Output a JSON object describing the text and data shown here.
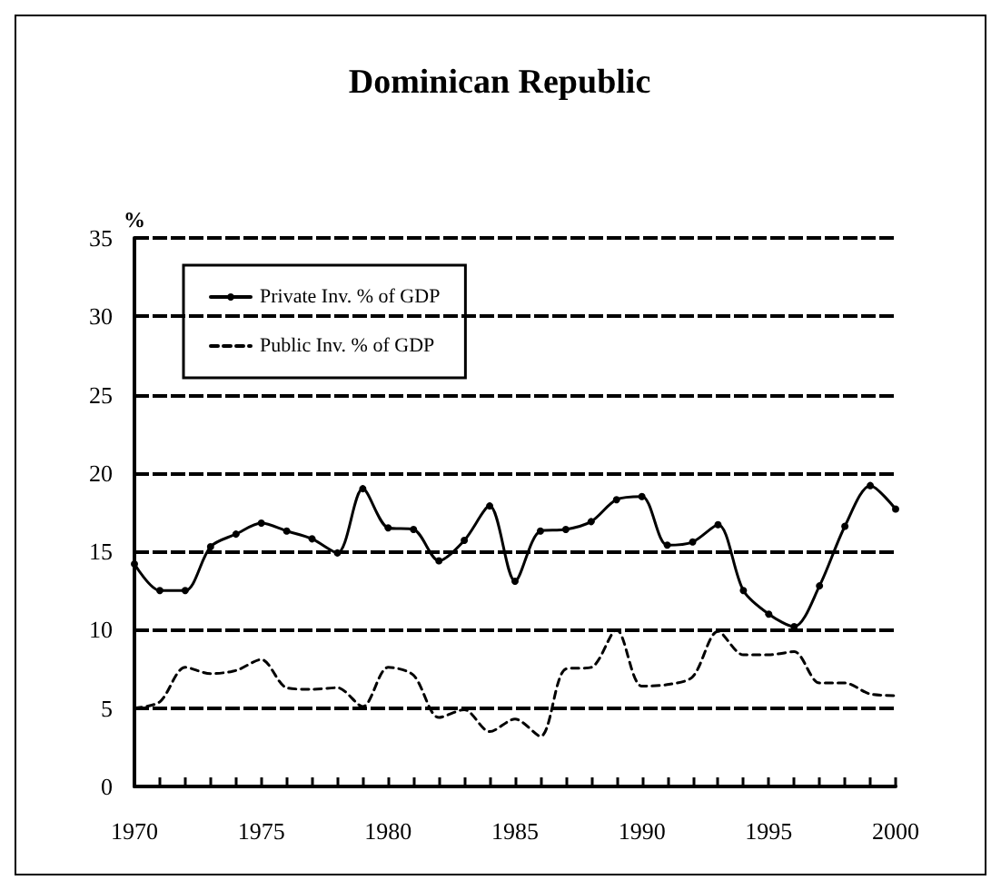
{
  "chart_data": {
    "type": "line",
    "title": "Dominican Republic",
    "ylabel": "%",
    "x": [
      1970,
      1971,
      1972,
      1973,
      1974,
      1975,
      1976,
      1977,
      1978,
      1979,
      1980,
      1981,
      1982,
      1983,
      1984,
      1985,
      1986,
      1987,
      1988,
      1989,
      1990,
      1991,
      1992,
      1993,
      1994,
      1995,
      1996,
      1997,
      1998,
      1999,
      2000
    ],
    "series": [
      {
        "name": "Private Inv. % of GDP",
        "color": "#000000",
        "marker": "circle",
        "line_style": "solid",
        "values": [
          14.2,
          12.5,
          12.5,
          15.3,
          16.1,
          16.8,
          16.3,
          15.8,
          14.9,
          19,
          16.5,
          16.4,
          14.4,
          15.7,
          17.9,
          13.1,
          16.3,
          16.4,
          16.9,
          18.3,
          18.5,
          15.4,
          15.6,
          16.7,
          12.5,
          11,
          10.2,
          12.8,
          16.6,
          19.2,
          17.7
        ]
      },
      {
        "name": "Public Inv. % of GDP",
        "color": "#000000",
        "marker": "none",
        "line_style": "dashed",
        "values": [
          5.0,
          5.4,
          7.6,
          7.2,
          7.4,
          8.1,
          6.3,
          6.2,
          6.3,
          5.1,
          7.6,
          7.1,
          4.4,
          4.9,
          3.5,
          4.3,
          3.2,
          7.5,
          7.6,
          10.0,
          6.4,
          6.5,
          7.0,
          9.9,
          8.4,
          8.4,
          8.6,
          6.6,
          6.6,
          5.9,
          5.8
        ]
      }
    ],
    "xlim": [
      1970,
      2000
    ],
    "xticks": [
      1970,
      1975,
      1980,
      1985,
      1990,
      1995,
      2000
    ],
    "ylim": [
      0,
      35
    ],
    "yticks": [
      0,
      5,
      10,
      15,
      20,
      25,
      30,
      35
    ],
    "grid": "y",
    "legend": "top left"
  }
}
